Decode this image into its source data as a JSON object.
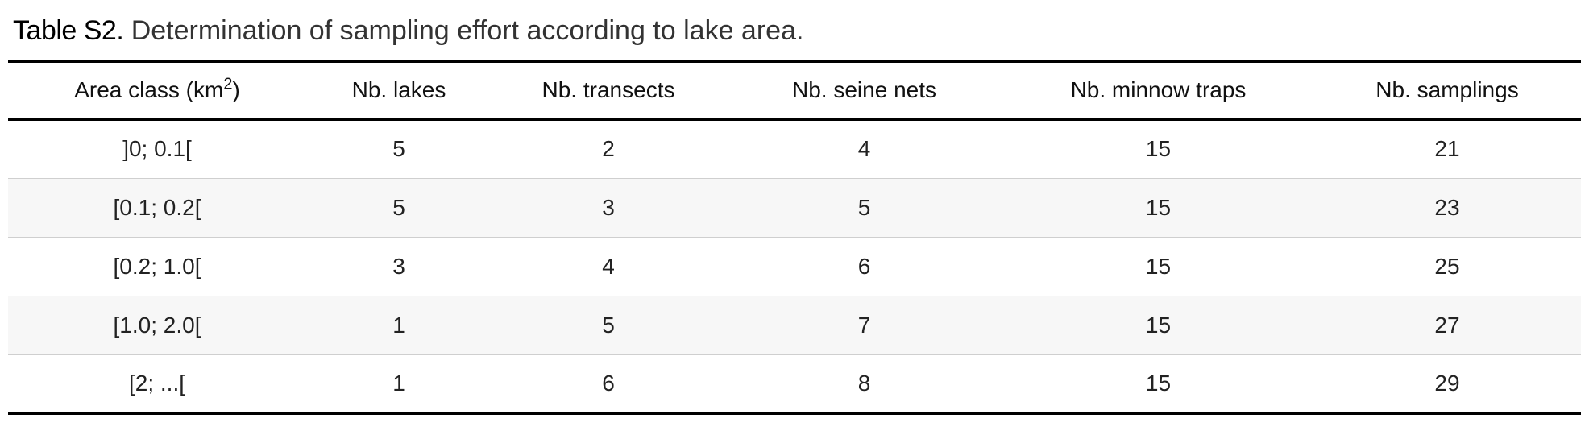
{
  "caption": {
    "label": "Table S2.",
    "text": " Determination of sampling effort according to lake area."
  },
  "table": {
    "headers": [
      {
        "text": "Area class (km",
        "sup": "2",
        "suffix": ")"
      },
      {
        "text": "Nb. lakes"
      },
      {
        "text": "Nb. transects"
      },
      {
        "text": "Nb. seine nets"
      },
      {
        "text": "Nb. minnow traps"
      },
      {
        "text": "Nb. samplings"
      }
    ],
    "rows": [
      [
        "]0; 0.1[",
        "5",
        "2",
        "4",
        "15",
        "21"
      ],
      [
        "[0.1; 0.2[",
        "5",
        "3",
        "5",
        "15",
        "23"
      ],
      [
        "[0.2; 1.0[",
        "3",
        "4",
        "6",
        "15",
        "25"
      ],
      [
        "[1.0; 2.0[",
        "1",
        "5",
        "7",
        "15",
        "27"
      ],
      [
        "[2; ...[",
        "1",
        "6",
        "8",
        "15",
        "29"
      ]
    ]
  }
}
